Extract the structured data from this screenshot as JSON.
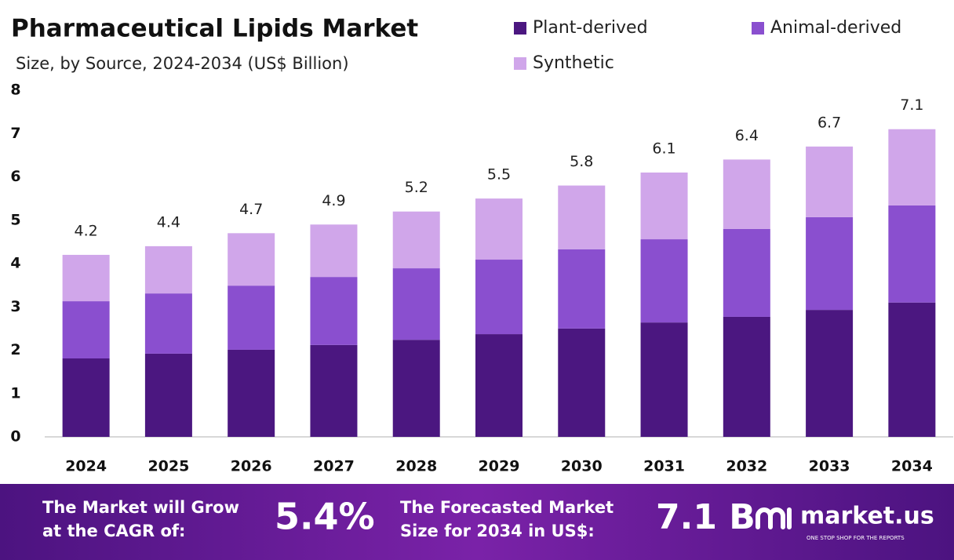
{
  "chart_data": {
    "type": "stacked-bar",
    "title": "Pharmaceutical Lipids Market",
    "subtitle": "Size, by Source, 2024-2034 (US$ Billion)",
    "categories": [
      "2024",
      "2025",
      "2026",
      "2027",
      "2028",
      "2029",
      "2030",
      "2031",
      "2032",
      "2033",
      "2034"
    ],
    "series": [
      {
        "name": "Plant-derived",
        "color": "#4b1780",
        "values": [
          1.81,
          1.92,
          2.01,
          2.12,
          2.24,
          2.37,
          2.5,
          2.64,
          2.77,
          2.93,
          3.1
        ]
      },
      {
        "name": "Animal-derived",
        "color": "#8a4fcf",
        "values": [
          1.32,
          1.39,
          1.48,
          1.57,
          1.65,
          1.72,
          1.83,
          1.92,
          2.03,
          2.14,
          2.24
        ]
      },
      {
        "name": "Synthetic",
        "color": "#d0a6ea",
        "values": [
          1.07,
          1.09,
          1.21,
          1.21,
          1.31,
          1.41,
          1.47,
          1.54,
          1.6,
          1.63,
          1.76
        ]
      }
    ],
    "totals": [
      4.2,
      4.4,
      4.7,
      4.9,
      5.2,
      5.5,
      5.8,
      6.1,
      6.4,
      6.7,
      7.1
    ],
    "ylim": [
      0,
      8
    ],
    "yticks": [
      0,
      1,
      2,
      3,
      4,
      5,
      6,
      7,
      8
    ],
    "grid": false
  },
  "footer": {
    "cagr_text": [
      "The Market will Grow",
      "at the CAGR of:"
    ],
    "cagr_value": "5.4%",
    "forecast_text": [
      "The Forecasted Market",
      "Size for 2034 in US$:"
    ],
    "forecast_value": "7.1 B",
    "brand": "market.us",
    "tagline": "ONE STOP SHOP FOR THE REPORTS"
  }
}
